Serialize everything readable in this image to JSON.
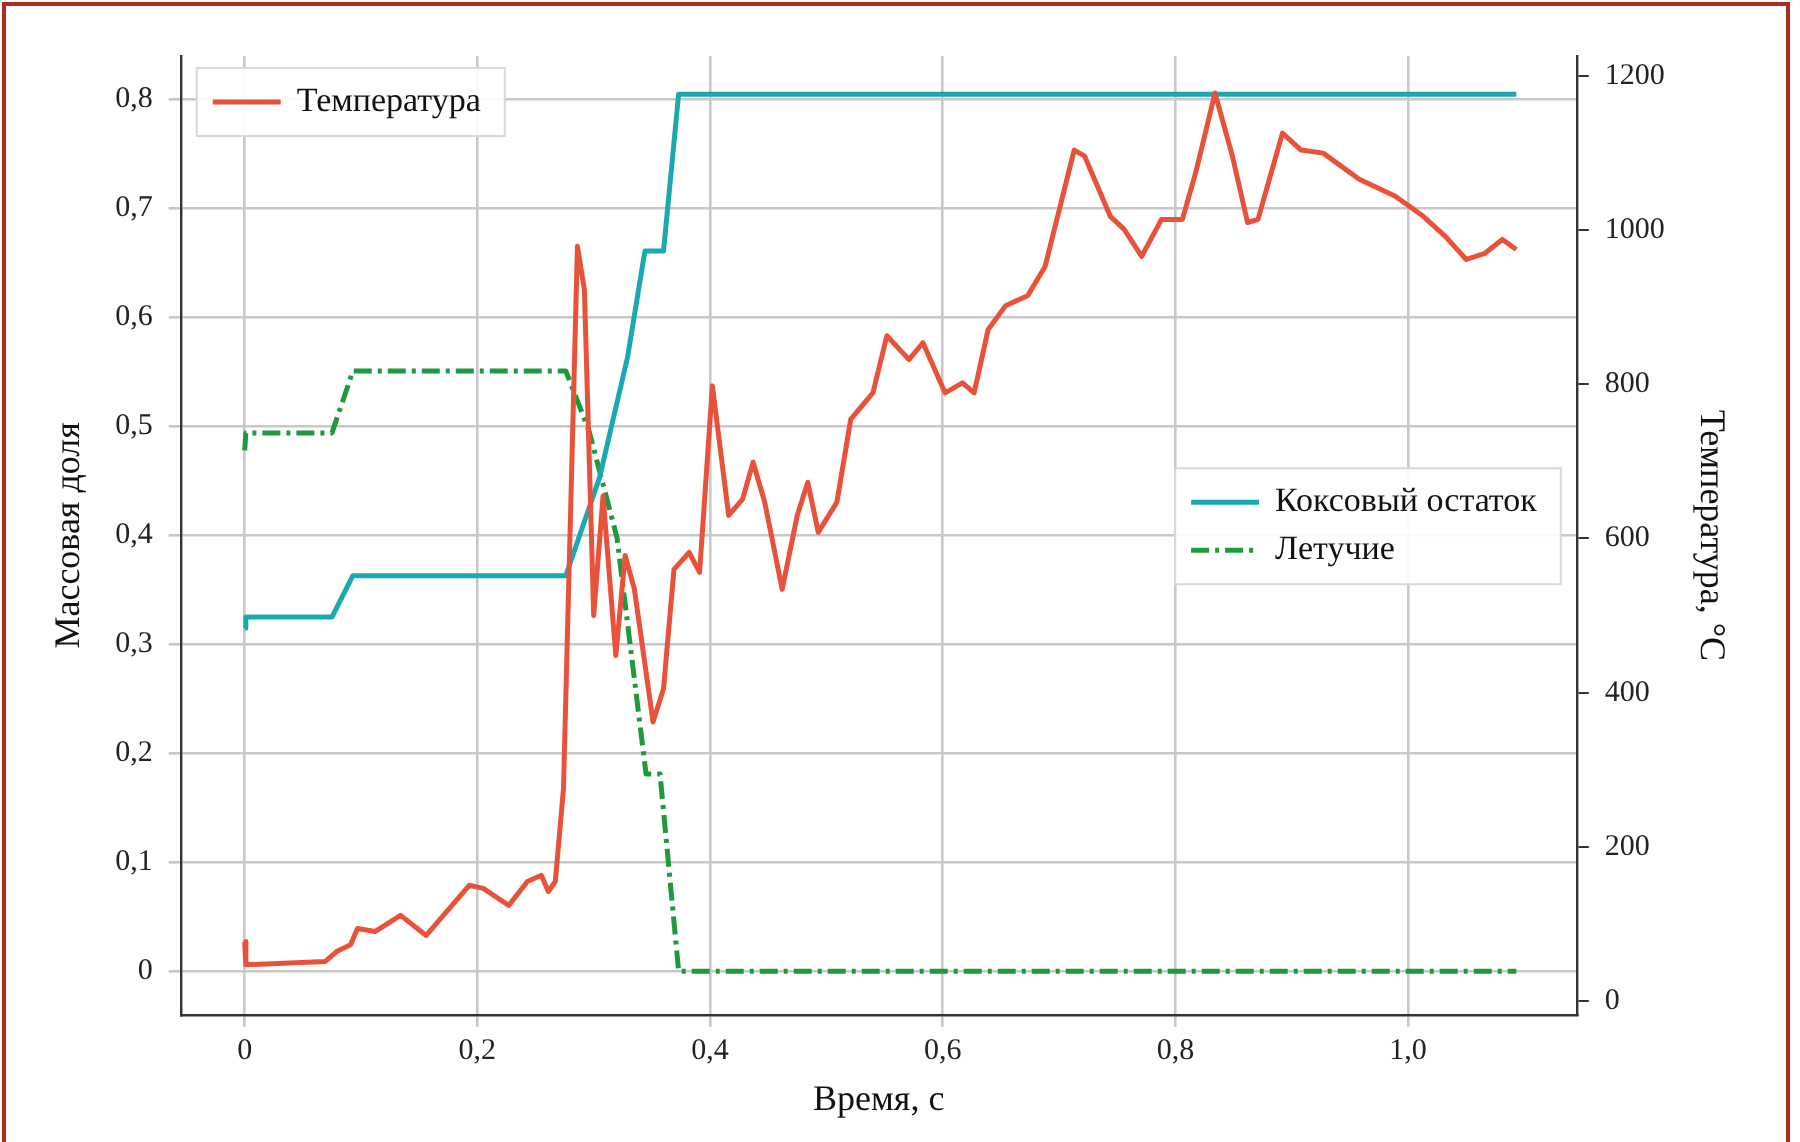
{
  "chart_data": {
    "type": "line",
    "xlabel": "Время, с",
    "ylabel": "Массовая доля",
    "y2label": "Температура, °C",
    "xlim": [
      -0.055,
      1.145
    ],
    "xticks": [
      {
        "value": 0,
        "label": "0"
      },
      {
        "value": 0.2,
        "label": "0,2"
      },
      {
        "value": 0.4,
        "label": "0,4"
      },
      {
        "value": 0.6,
        "label": "0,6"
      },
      {
        "value": 0.8,
        "label": "0,8"
      },
      {
        "value": 1.0,
        "label": "1,0"
      }
    ],
    "ylim": [
      -0.04,
      0.84
    ],
    "yticks": [
      {
        "value": 0,
        "label": "0"
      },
      {
        "value": 0.1,
        "label": "0,1"
      },
      {
        "value": 0.2,
        "label": "0,2"
      },
      {
        "value": 0.3,
        "label": "0,3"
      },
      {
        "value": 0.4,
        "label": "0,4"
      },
      {
        "value": 0.5,
        "label": "0,5"
      },
      {
        "value": 0.6,
        "label": "0,6"
      },
      {
        "value": 0.7,
        "label": "0,7"
      },
      {
        "value": 0.8,
        "label": "0,8"
      }
    ],
    "y2lim": [
      -18,
      1226
    ],
    "y2ticks": [
      0,
      200,
      400,
      600,
      800,
      1000,
      1200
    ],
    "grid": true,
    "legend": "top left",
    "marker": "none",
    "series": [
      {
        "name": "Температура",
        "color": "#e8513a",
        "axis": "y2",
        "line_style": "solid",
        "x": [
          0,
          0.001,
          0.069,
          0.079,
          0.091,
          0.097,
          0.112,
          0.134,
          0.156,
          0.193,
          0.205,
          0.227,
          0.243,
          0.255,
          0.261,
          0.267,
          0.274,
          0.286,
          0.292,
          0.3,
          0.308,
          0.319,
          0.327,
          0.335,
          0.351,
          0.36,
          0.369,
          0.382,
          0.391,
          0.402,
          0.416,
          0.428,
          0.437,
          0.447,
          0.462,
          0.475,
          0.484,
          0.493,
          0.509,
          0.521,
          0.54,
          0.552,
          0.571,
          0.583,
          0.602,
          0.617,
          0.627,
          0.639,
          0.654,
          0.673,
          0.688,
          0.713,
          0.722,
          0.744,
          0.756,
          0.771,
          0.788,
          0.806,
          0.818,
          0.834,
          0.849,
          0.862,
          0.871,
          0.892,
          0.908,
          0.927,
          0.958,
          0.989,
          1.013,
          1.032,
          1.05,
          1.066,
          1.081,
          1.093
        ],
        "values": [
          77,
          47,
          51,
          64,
          73,
          94,
          90,
          111,
          85,
          150,
          146,
          124,
          155,
          163,
          142,
          155,
          275,
          979,
          923,
          500,
          655,
          448,
          578,
          534,
          362,
          405,
          560,
          582,
          556,
          798,
          630,
          651,
          699,
          647,
          534,
          630,
          673,
          608,
          647,
          755,
          789,
          863,
          832,
          854,
          789,
          802,
          789,
          871,
          902,
          915,
          953,
          1104,
          1096,
          1018,
          1001,
          966,
          1014,
          1014,
          1078,
          1178,
          1096,
          1010,
          1014,
          1126,
          1104,
          1100,
          1066,
          1044,
          1018,
          992,
          962,
          970,
          988,
          975
        ]
      },
      {
        "name": "Коксовый остаток",
        "color": "#1aa9b0",
        "axis": "y",
        "line_style": "solid",
        "x": [
          0,
          0.001,
          0.075,
          0.093,
          0.276,
          0.305,
          0.329,
          0.344,
          0.36,
          0.373,
          1.093
        ],
        "values": [
          0.315,
          0.325,
          0.325,
          0.363,
          0.363,
          0.453,
          0.563,
          0.661,
          0.661,
          0.805,
          0.805
        ]
      },
      {
        "name": "Летучие",
        "color": "#1e9a3c",
        "axis": "y",
        "line_style": "dashdot",
        "x": [
          0,
          0.001,
          0.075,
          0.093,
          0.276,
          0.296,
          0.32,
          0.345,
          0.357,
          0.373,
          1.093
        ],
        "values": [
          0.478,
          0.494,
          0.494,
          0.551,
          0.551,
          0.496,
          0.398,
          0.181,
          0.181,
          0,
          0
        ]
      }
    ]
  }
}
